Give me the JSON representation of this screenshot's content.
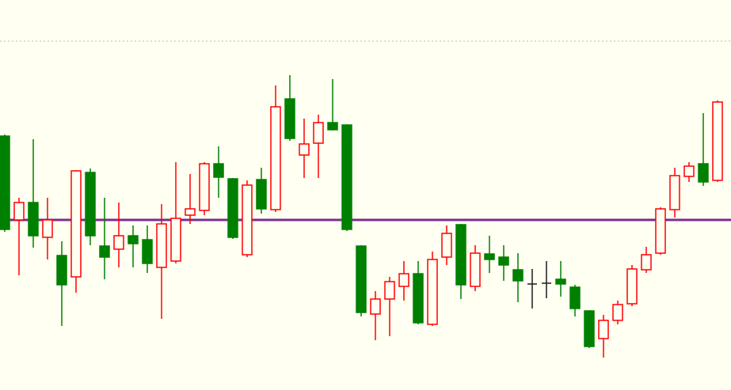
{
  "chart_data": {
    "type": "candlestick",
    "categories": [
      null,
      null,
      null,
      null,
      null,
      null,
      null,
      null,
      null,
      null,
      null,
      null,
      null,
      null,
      null,
      null,
      null,
      null,
      null,
      null,
      null,
      null,
      null,
      null,
      null,
      null,
      null,
      null,
      null,
      null,
      null,
      null,
      null,
      null,
      null,
      null,
      null,
      null,
      null,
      null,
      null,
      null,
      null,
      null,
      null,
      null,
      null,
      null,
      null,
      null,
      null
    ],
    "open": [
      321,
      215,
      237,
      193,
      170,
      143,
      275,
      182,
      178,
      195,
      190,
      155,
      163,
      221,
      227,
      286,
      267,
      171,
      266,
      228,
      368,
      297,
      312,
      338,
      335,
      182,
      96,
      115,
      131,
      147,
      83,
      168,
      209,
      131,
      172,
      168,
      152,
      134,
      135,
      140,
      130,
      100,
      65,
      88,
      109,
      152,
      173,
      228,
      270,
      286,
      265
    ],
    "high": [
      323,
      243,
      317,
      243,
      188,
      278,
      280,
      243,
      237,
      208,
      208,
      235,
      288,
      273,
      288,
      308,
      268,
      265,
      281,
      385,
      398,
      343,
      348,
      393,
      336,
      183,
      125,
      143,
      163,
      163,
      175,
      208,
      210,
      183,
      195,
      183,
      173,
      153,
      163,
      163,
      133,
      101,
      95,
      113,
      158,
      181,
      231,
      281,
      288,
      350,
      366
    ],
    "low": [
      200,
      145,
      180,
      165,
      81,
      123,
      183,
      140,
      155,
      155,
      148,
      90,
      160,
      210,
      221,
      243,
      191,
      168,
      223,
      225,
      315,
      268,
      268,
      328,
      201,
      93,
      63,
      68,
      113,
      83,
      81,
      158,
      115,
      125,
      148,
      138,
      111,
      103,
      116,
      118,
      93,
      53,
      41,
      83,
      106,
      148,
      171,
      218,
      263,
      258,
      263
    ],
    "close": [
      203,
      237,
      195,
      215,
      133,
      277,
      195,
      168,
      195,
      185,
      160,
      210,
      217,
      229,
      286,
      269,
      193,
      259,
      229,
      358,
      318,
      311,
      338,
      329,
      203,
      98,
      115,
      137,
      147,
      85,
      165,
      198,
      133,
      173,
      165,
      158,
      138,
      134,
      135,
      134,
      103,
      55,
      88,
      108,
      153,
      171,
      229,
      271,
      283,
      263,
      364
    ],
    "up_color": "#ff0000",
    "down_color": "#008000",
    "doji_color": "#1a1a1a",
    "levels": [
      {
        "value": 215,
        "color": "#7b2d8e"
      },
      {
        "value": 441,
        "color": "#b8b8b8"
      }
    ],
    "ylim": [
      0,
      493
    ],
    "background": "#fffff2"
  }
}
